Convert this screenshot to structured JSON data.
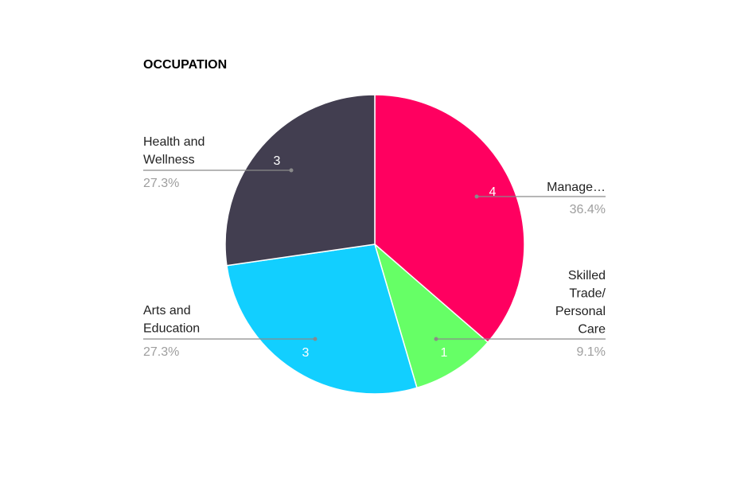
{
  "chart_data": {
    "type": "pie",
    "title": "OCCUPATION",
    "slices": [
      {
        "label": [
          "Manage…"
        ],
        "value": 4,
        "percent": "36.4%",
        "color": "#FF0060"
      },
      {
        "label": [
          "Skilled",
          "Trade/",
          "Personal",
          "Care"
        ],
        "value": 1,
        "percent": "9.1%",
        "color": "#66FF66"
      },
      {
        "label": [
          "Arts and",
          "Education"
        ],
        "value": 3,
        "percent": "27.3%",
        "color": "#12CFFF"
      },
      {
        "label": [
          "Health and",
          "Wellness"
        ],
        "value": 3,
        "percent": "27.3%",
        "color": "#423E50"
      }
    ],
    "start_angle": "12 o'clock",
    "direction": "clockwise",
    "legend": "none",
    "leader_line_color": "#8a8a8a"
  }
}
